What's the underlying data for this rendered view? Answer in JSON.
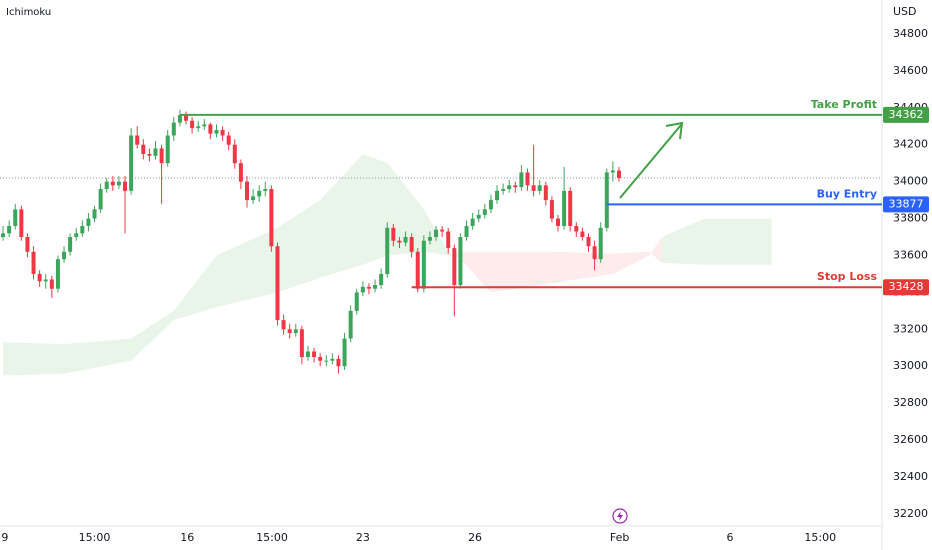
{
  "chart_data": {
    "type": "candlestick",
    "title": "Ichimoku",
    "currency": "USD",
    "up_color": "#3ba55c",
    "down_color": "#f23645",
    "xlim": [
      -0.5,
      143.8
    ],
    "ylim": [
      32140,
      34984
    ],
    "yticks": [
      32200,
      32400,
      32600,
      32800,
      33000,
      33200,
      33400,
      33600,
      33800,
      34000,
      34200,
      34400,
      34600,
      34800
    ],
    "xticks": [
      {
        "value": 0.3,
        "label": "9"
      },
      {
        "value": 15,
        "label": "15:00"
      },
      {
        "value": 30.2,
        "label": "16"
      },
      {
        "value": 44.1,
        "label": "15:00"
      },
      {
        "value": 59,
        "label": "23"
      },
      {
        "value": 77.4,
        "label": "26"
      },
      {
        "value": 101.1,
        "label": "Feb"
      },
      {
        "value": 119.2,
        "label": "6"
      },
      {
        "value": 134,
        "label": "15:00"
      }
    ],
    "candles": [
      [
        33700,
        33760,
        33680,
        33720
      ],
      [
        33720,
        33790,
        33700,
        33760
      ],
      [
        33760,
        33880,
        33740,
        33850
      ],
      [
        33850,
        33870,
        33680,
        33700
      ],
      [
        33700,
        33720,
        33590,
        33620
      ],
      [
        33620,
        33650,
        33470,
        33500
      ],
      [
        33500,
        33520,
        33430,
        33460
      ],
      [
        33460,
        33500,
        33420,
        33470
      ],
      [
        33470,
        33490,
        33370,
        33420
      ],
      [
        33420,
        33600,
        33400,
        33580
      ],
      [
        33580,
        33650,
        33560,
        33620
      ],
      [
        33620,
        33720,
        33600,
        33700
      ],
      [
        33700,
        33750,
        33680,
        33720
      ],
      [
        33720,
        33790,
        33700,
        33760
      ],
      [
        33760,
        33830,
        33730,
        33800
      ],
      [
        33800,
        33870,
        33780,
        33850
      ],
      [
        33850,
        33990,
        33830,
        33960
      ],
      [
        33960,
        34020,
        33940,
        34000
      ],
      [
        34000,
        34030,
        33950,
        33980
      ],
      [
        33980,
        34030,
        33960,
        34000
      ],
      [
        34000,
        34030,
        33720,
        33950
      ],
      [
        33950,
        34290,
        33930,
        34250
      ],
      [
        34250,
        34300,
        34180,
        34200
      ],
      [
        34200,
        34230,
        34120,
        34150
      ],
      [
        34150,
        34180,
        34110,
        34140
      ],
      [
        34140,
        34220,
        34120,
        34180
      ],
      [
        34180,
        34200,
        33880,
        34100
      ],
      [
        34100,
        34280,
        34080,
        34250
      ],
      [
        34250,
        34350,
        34220,
        34320
      ],
      [
        34320,
        34390,
        34300,
        34360
      ],
      [
        34360,
        34380,
        34310,
        34330
      ],
      [
        34330,
        34350,
        34260,
        34290
      ],
      [
        34290,
        34330,
        34270,
        34300
      ],
      [
        34300,
        34340,
        34280,
        34310
      ],
      [
        34310,
        34320,
        34230,
        34260
      ],
      [
        34260,
        34310,
        34240,
        34280
      ],
      [
        34280,
        34300,
        34220,
        34250
      ],
      [
        34250,
        34270,
        34170,
        34200
      ],
      [
        34200,
        34230,
        34070,
        34100
      ],
      [
        34100,
        34120,
        33960,
        34000
      ],
      [
        34000,
        34030,
        33860,
        33900
      ],
      [
        33900,
        33960,
        33880,
        33920
      ],
      [
        33920,
        33980,
        33890,
        33950
      ],
      [
        33950,
        34000,
        33920,
        33960
      ],
      [
        33960,
        33980,
        33620,
        33650
      ],
      [
        33650,
        33670,
        33220,
        33250
      ],
      [
        33250,
        33280,
        33170,
        33200
      ],
      [
        33200,
        33230,
        33150,
        33180
      ],
      [
        33180,
        33230,
        33160,
        33200
      ],
      [
        33200,
        33220,
        33010,
        33050
      ],
      [
        33050,
        33110,
        33030,
        33080
      ],
      [
        33080,
        33100,
        33020,
        33050
      ],
      [
        33050,
        33070,
        33000,
        33030
      ],
      [
        33030,
        33060,
        33000,
        33030
      ],
      [
        33030,
        33070,
        33010,
        33040
      ],
      [
        33040,
        33060,
        32960,
        33000
      ],
      [
        33000,
        33180,
        32980,
        33150
      ],
      [
        33150,
        33330,
        33130,
        33300
      ],
      [
        33300,
        33420,
        33280,
        33400
      ],
      [
        33400,
        33460,
        33380,
        33430
      ],
      [
        33430,
        33450,
        33390,
        33420
      ],
      [
        33420,
        33470,
        33400,
        33440
      ],
      [
        33440,
        33530,
        33420,
        33500
      ],
      [
        33500,
        33780,
        33480,
        33750
      ],
      [
        33750,
        33770,
        33650,
        33680
      ],
      [
        33680,
        33700,
        33640,
        33670
      ],
      [
        33670,
        33730,
        33650,
        33700
      ],
      [
        33700,
        33720,
        33590,
        33620
      ],
      [
        33620,
        33640,
        33400,
        33420
      ],
      [
        33420,
        33710,
        33400,
        33680
      ],
      [
        33680,
        33730,
        33660,
        33700
      ],
      [
        33700,
        33760,
        33680,
        33740
      ],
      [
        33740,
        33760,
        33700,
        33730
      ],
      [
        33730,
        33750,
        33610,
        33640
      ],
      [
        33640,
        33660,
        33270,
        33440
      ],
      [
        33440,
        33720,
        33420,
        33700
      ],
      [
        33700,
        33790,
        33680,
        33760
      ],
      [
        33760,
        33830,
        33740,
        33800
      ],
      [
        33800,
        33850,
        33780,
        33820
      ],
      [
        33820,
        33880,
        33800,
        33850
      ],
      [
        33850,
        33930,
        33830,
        33900
      ],
      [
        33900,
        33980,
        33880,
        33950
      ],
      [
        33950,
        33990,
        33930,
        33960
      ],
      [
        33960,
        34010,
        33940,
        33980
      ],
      [
        33980,
        34000,
        33940,
        33970
      ],
      [
        33970,
        34090,
        33950,
        34050
      ],
      [
        34050,
        34070,
        33950,
        33980
      ],
      [
        33980,
        34200,
        33920,
        33950
      ],
      [
        33950,
        34010,
        33930,
        33980
      ],
      [
        33980,
        34000,
        33870,
        33900
      ],
      [
        33900,
        33920,
        33780,
        33800
      ],
      [
        33800,
        33820,
        33730,
        33760
      ],
      [
        33760,
        34080,
        33740,
        33950
      ],
      [
        33950,
        33970,
        33730,
        33760
      ],
      [
        33760,
        33780,
        33700,
        33730
      ],
      [
        33730,
        33750,
        33680,
        33700
      ],
      [
        33700,
        33720,
        33620,
        33650
      ],
      [
        33650,
        33680,
        33520,
        33580
      ],
      [
        33580,
        33780,
        33560,
        33750
      ],
      [
        33750,
        34070,
        33730,
        34050
      ],
      [
        34050,
        34110,
        34000,
        34060
      ],
      [
        34060,
        34080,
        34000,
        34020
      ]
    ],
    "cloud": {
      "up_color": "rgba(76,175,80,0.13)",
      "down_color": "rgba(242,54,69,0.10)",
      "x": [
        0,
        10,
        21,
        28,
        35,
        45,
        52,
        59,
        63,
        69,
        73,
        75,
        80,
        90,
        100,
        106,
        108,
        115,
        126
      ],
      "span_a": [
        33130,
        33120,
        33150,
        33300,
        33600,
        33750,
        33900,
        34150,
        34100,
        33850,
        33620,
        33580,
        33400,
        33450,
        33500,
        33600,
        33700,
        33800,
        33800
      ],
      "span_b": [
        32950,
        32960,
        33030,
        33250,
        33320,
        33400,
        33480,
        33550,
        33600,
        33620,
        33600,
        33620,
        33620,
        33620,
        33610,
        33620,
        33560,
        33550,
        33550
      ]
    },
    "levels": [
      {
        "name": "Take Profit",
        "value": 34362,
        "from": 29,
        "color": "#43a047"
      },
      {
        "name": "Buy Entry",
        "value": 33877,
        "from": 99,
        "color": "#2962ff"
      },
      {
        "name": "Stop Loss",
        "value": 33428,
        "from": 67,
        "color": "#e53935"
      }
    ]
  }
}
